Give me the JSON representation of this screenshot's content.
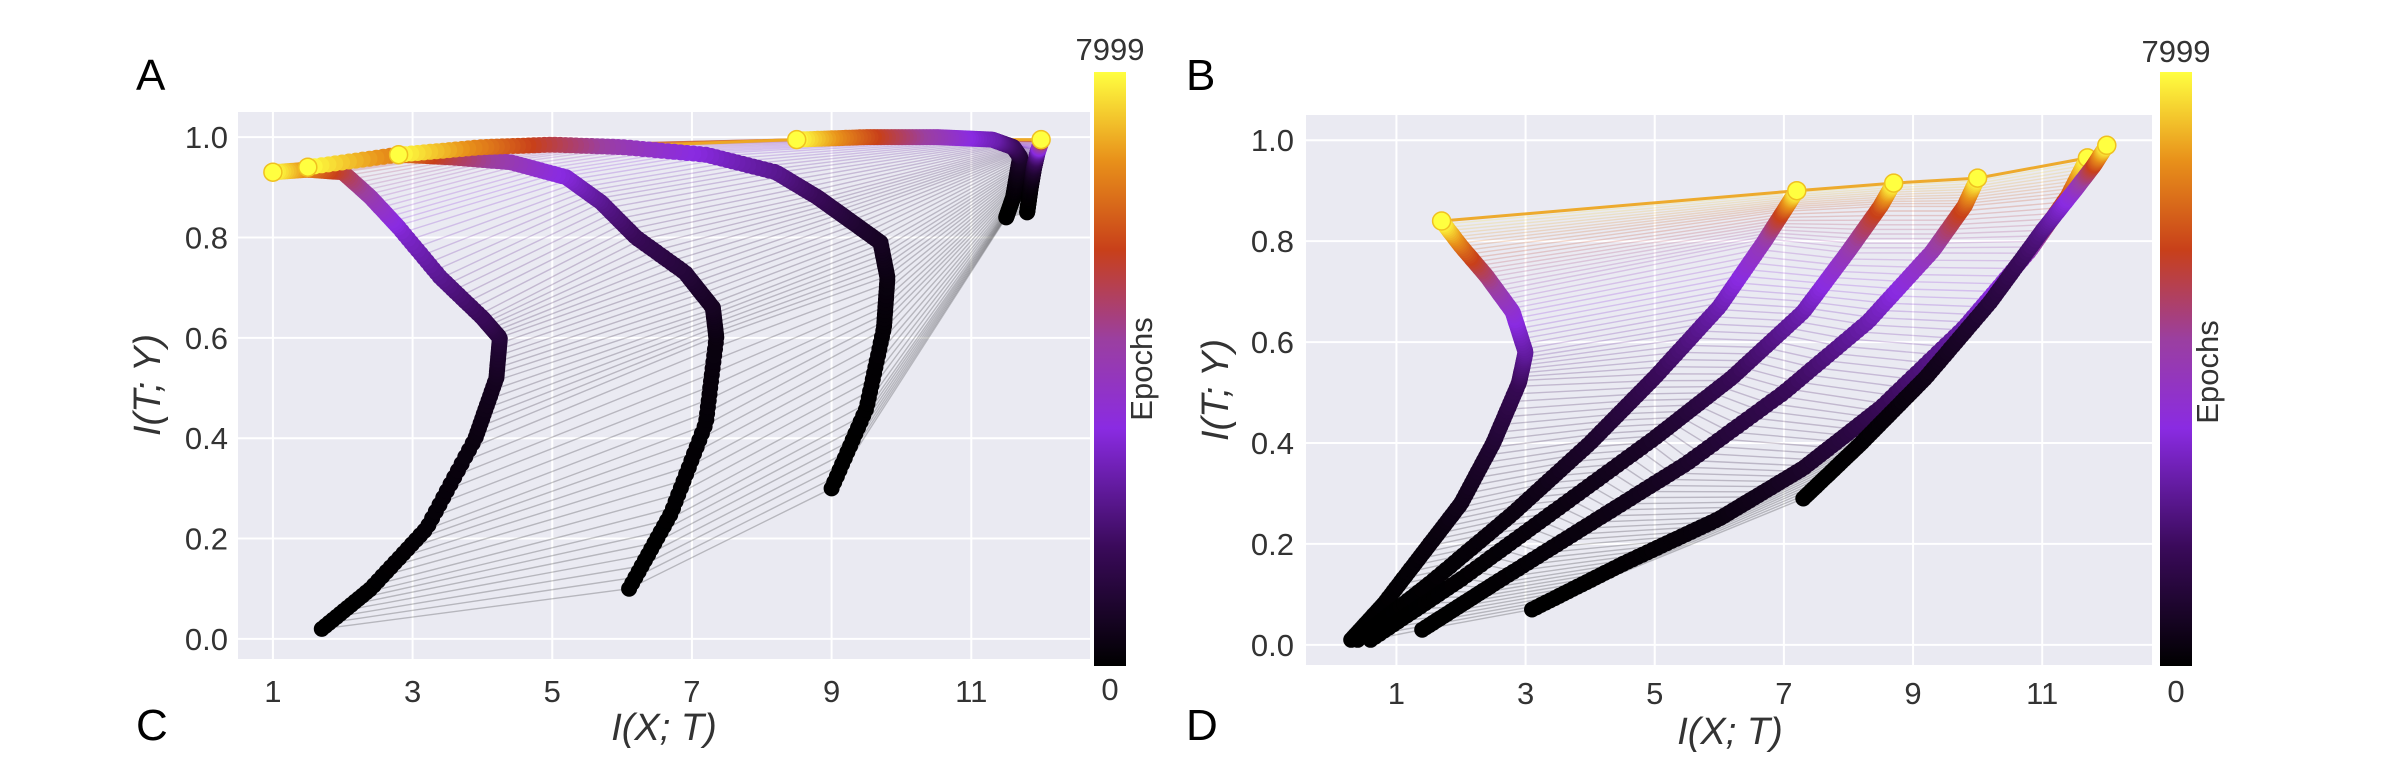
{
  "panel_letters": [
    "A",
    "B",
    "C",
    "D"
  ],
  "chart_data": [
    {
      "type": "line",
      "title": "",
      "xlabel": "I(X; T)",
      "ylabel": "I(T; Y)",
      "xlim": [
        0.5,
        12.7
      ],
      "ylim": [
        -0.04,
        1.05
      ],
      "xticks": [
        1,
        3,
        5,
        7,
        9,
        11
      ],
      "xtick_labels": [
        "1",
        "3",
        "5",
        "7",
        "9",
        "11"
      ],
      "yticks": [
        0.0,
        0.2,
        0.4,
        0.6,
        0.8,
        1.0
      ],
      "ytick_labels": [
        "0.0",
        "0.2",
        "0.4",
        "0.6",
        "0.8",
        "1.0"
      ],
      "grid": true,
      "colorbar": {
        "label": "Epochs",
        "min": 0,
        "max": 7999,
        "min_label": "0",
        "max_label": "7999",
        "colormap": "gnuplot"
      },
      "series": [
        {
          "x": [
            1.7,
            2.4,
            3.2,
            3.9,
            4.2,
            4.25,
            4.0,
            3.4,
            2.8,
            2.4,
            2.0,
            1.5,
            1.0
          ],
          "y": [
            0.02,
            0.1,
            0.22,
            0.4,
            0.52,
            0.6,
            0.64,
            0.72,
            0.82,
            0.88,
            0.93,
            0.935,
            0.93
          ]
        },
        {
          "x": [
            6.1,
            6.7,
            7.2,
            7.35,
            7.3,
            6.9,
            6.2,
            5.7,
            5.2,
            4.4,
            3.5,
            2.8,
            1.5
          ],
          "y": [
            0.1,
            0.25,
            0.43,
            0.6,
            0.66,
            0.73,
            0.8,
            0.87,
            0.92,
            0.95,
            0.96,
            0.965,
            0.94
          ]
        },
        {
          "x": [
            9.0,
            9.5,
            9.75,
            9.8,
            9.7,
            9.2,
            8.8,
            8.2,
            7.2,
            6.0,
            5.0,
            4.0,
            2.8
          ],
          "y": [
            0.3,
            0.46,
            0.62,
            0.72,
            0.79,
            0.84,
            0.88,
            0.93,
            0.965,
            0.98,
            0.985,
            0.98,
            0.965
          ]
        },
        {
          "x": [
            11.5,
            11.6,
            11.65,
            11.7,
            11.6,
            11.3,
            10.5,
            9.5,
            8.5
          ],
          "y": [
            0.84,
            0.88,
            0.92,
            0.96,
            0.98,
            0.995,
            1.0,
            1.0,
            0.995
          ]
        },
        {
          "x": [
            11.8,
            11.85,
            11.9,
            11.95,
            12.0,
            12.0
          ],
          "y": [
            0.85,
            0.9,
            0.94,
            0.97,
            0.99,
            0.995
          ]
        }
      ]
    },
    {
      "type": "line",
      "title": "",
      "xlabel": "I(X; T)",
      "ylabel": "I(T; Y)",
      "xlim": [
        -0.4,
        12.7
      ],
      "ylim": [
        -0.04,
        1.05
      ],
      "xticks": [
        1,
        3,
        5,
        7,
        9,
        11
      ],
      "xtick_labels": [
        "1",
        "3",
        "5",
        "7",
        "9",
        "11"
      ],
      "yticks": [
        0.0,
        0.2,
        0.4,
        0.6,
        0.8,
        1.0
      ],
      "ytick_labels": [
        "0.0",
        "0.2",
        "0.4",
        "0.6",
        "0.8",
        "1.0"
      ],
      "grid": true,
      "colorbar": {
        "label": "Epochs",
        "min": 0,
        "max": 7999,
        "min_label": "0",
        "max_label": "7999",
        "colormap": "gnuplot"
      },
      "series": [
        {
          "x": [
            0.3,
            0.8,
            1.4,
            2.0,
            2.5,
            2.9,
            3.0,
            2.8,
            2.4,
            2.0,
            1.7
          ],
          "y": [
            0.01,
            0.08,
            0.18,
            0.28,
            0.4,
            0.52,
            0.58,
            0.66,
            0.73,
            0.79,
            0.84
          ]
        },
        {
          "x": [
            0.4,
            1.5,
            2.8,
            4.0,
            5.0,
            6.0,
            6.7,
            7.0,
            7.2
          ],
          "y": [
            0.01,
            0.12,
            0.26,
            0.4,
            0.53,
            0.67,
            0.8,
            0.86,
            0.9
          ]
        },
        {
          "x": [
            0.6,
            2.0,
            3.5,
            5.0,
            6.2,
            7.3,
            8.0,
            8.5,
            8.7
          ],
          "y": [
            0.01,
            0.13,
            0.27,
            0.41,
            0.53,
            0.66,
            0.78,
            0.87,
            0.915
          ]
        },
        {
          "x": [
            1.4,
            2.5,
            4.0,
            5.5,
            7.0,
            8.3,
            9.3,
            9.8,
            10.0
          ],
          "y": [
            0.03,
            0.12,
            0.24,
            0.36,
            0.5,
            0.64,
            0.78,
            0.87,
            0.925
          ]
        },
        {
          "x": [
            3.1,
            4.5,
            6.0,
            7.3,
            8.5,
            9.8,
            10.8,
            11.4,
            11.7
          ],
          "y": [
            0.07,
            0.16,
            0.25,
            0.35,
            0.47,
            0.63,
            0.78,
            0.89,
            0.965
          ]
        },
        {
          "x": [
            7.3,
            8.2,
            9.2,
            10.2,
            11.0,
            11.5,
            11.8,
            12.0
          ],
          "y": [
            0.29,
            0.4,
            0.53,
            0.68,
            0.82,
            0.9,
            0.95,
            0.99
          ]
        }
      ]
    }
  ]
}
